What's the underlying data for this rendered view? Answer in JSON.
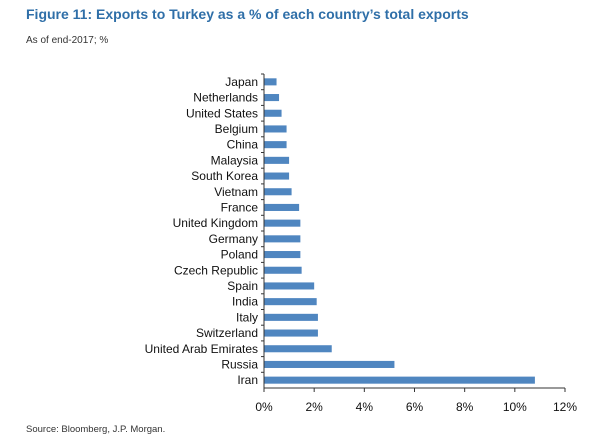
{
  "header": {
    "title": "Figure 11: Exports to Turkey as a % of each country’s total exports",
    "subtitle": "As of end-2017; %"
  },
  "footer": {
    "source": "Source: Bloomberg, J.P. Morgan."
  },
  "colors": {
    "title": "#2f6fa8",
    "bar": "#4f86c0",
    "axis": "#333333"
  },
  "chart_data": {
    "type": "bar",
    "orientation": "horizontal",
    "categories": [
      "Japan",
      "Netherlands",
      "United States",
      "Belgium",
      "China",
      "Malaysia",
      "South Korea",
      "Vietnam",
      "France",
      "United Kingdom",
      "Germany",
      "Poland",
      "Czech Republic",
      "Spain",
      "India",
      "Italy",
      "Switzerland",
      "United Arab Emirates",
      "Russia",
      "Iran"
    ],
    "values": [
      0.5,
      0.6,
      0.7,
      0.9,
      0.9,
      1.0,
      1.0,
      1.1,
      1.4,
      1.45,
      1.45,
      1.45,
      1.5,
      2.0,
      2.1,
      2.15,
      2.15,
      2.7,
      5.2,
      10.8
    ],
    "xlim": [
      0,
      12
    ],
    "xticks": [
      "0%",
      "2%",
      "4%",
      "6%",
      "8%",
      "10%",
      "12%"
    ],
    "tick_values": [
      0,
      2,
      4,
      6,
      8,
      10,
      12
    ],
    "grid": false,
    "legend": "none"
  }
}
